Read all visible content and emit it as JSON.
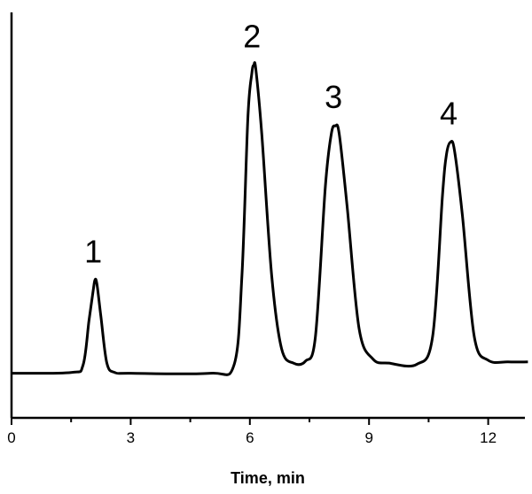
{
  "chart_data": {
    "type": "line",
    "xlabel": "Time, min",
    "ylabel": "",
    "xlim": [
      0,
      13
    ],
    "ylim": [
      0,
      1
    ],
    "x_ticks": [
      0,
      3,
      6,
      9,
      12
    ],
    "x_tick_labels": [
      "0",
      "3",
      "6",
      "9",
      "12"
    ],
    "grid": false,
    "series": [
      {
        "x": [
          0,
          1.5,
          1.8,
          1.95,
          2.05,
          2.1,
          2.15,
          2.25,
          2.4,
          2.6,
          3.0,
          5.0,
          5.6,
          5.8,
          5.95,
          6.05,
          6.1,
          6.15,
          6.3,
          6.55,
          6.8,
          7.1,
          7.4,
          7.65,
          7.9,
          8.05,
          8.15,
          8.25,
          8.45,
          8.75,
          9.1,
          9.5,
          10.2,
          10.6,
          10.85,
          10.95,
          11.05,
          11.15,
          11.35,
          11.65,
          12.0,
          12.5,
          13.0
        ],
        "y": [
          0.11,
          0.112,
          0.13,
          0.24,
          0.31,
          0.34,
          0.33,
          0.25,
          0.135,
          0.112,
          0.11,
          0.11,
          0.13,
          0.35,
          0.74,
          0.85,
          0.87,
          0.86,
          0.7,
          0.35,
          0.17,
          0.135,
          0.14,
          0.2,
          0.57,
          0.7,
          0.72,
          0.7,
          0.52,
          0.22,
          0.145,
          0.135,
          0.132,
          0.2,
          0.55,
          0.65,
          0.68,
          0.66,
          0.5,
          0.2,
          0.142,
          0.138,
          0.138
        ]
      }
    ],
    "annotations": [
      {
        "text": "1",
        "x": 2.1,
        "y": 0.34
      },
      {
        "text": "2",
        "x": 6.1,
        "y": 0.87
      },
      {
        "text": "3",
        "x": 8.15,
        "y": 0.72
      },
      {
        "text": "4",
        "x": 11.05,
        "y": 0.68
      }
    ]
  }
}
